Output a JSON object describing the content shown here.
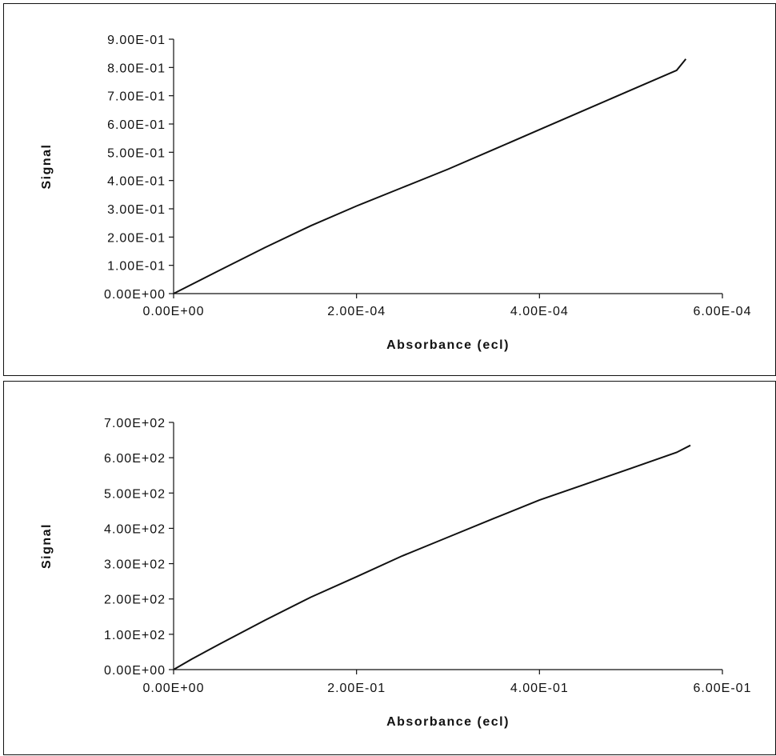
{
  "chart_data": [
    {
      "type": "line",
      "title": "",
      "xlabel": "Absorbance (ecl)",
      "ylabel": "Signal",
      "xlim": [
        0,
        0.0006
      ],
      "ylim": [
        0,
        0.9
      ],
      "x_ticks": [
        0,
        0.0002,
        0.0004,
        0.0006
      ],
      "x_tick_labels": [
        "0.00E+00",
        "2.00E-04",
        "4.00E-04",
        "6.00E-04"
      ],
      "y_ticks": [
        0,
        0.1,
        0.2,
        0.3,
        0.4,
        0.5,
        0.6,
        0.7,
        0.8,
        0.9
      ],
      "y_tick_labels": [
        "0.00E+00",
        "1.00E-01",
        "2.00E-01",
        "3.00E-01",
        "4.00E-01",
        "5.00E-01",
        "6.00E-01",
        "7.00E-01",
        "8.00E-01",
        "9.00E-01"
      ],
      "grid": false,
      "legend": "none",
      "series": [
        {
          "x": [
            0,
            5e-05,
            0.0001,
            0.00015,
            0.0002,
            0.00025,
            0.0003,
            0.00035,
            0.0004,
            0.00045,
            0.0005,
            0.00055,
            0.00056
          ],
          "values": [
            0,
            0.082,
            0.163,
            0.24,
            0.31,
            0.375,
            0.44,
            0.51,
            0.58,
            0.65,
            0.72,
            0.79,
            0.83
          ]
        }
      ]
    },
    {
      "type": "line",
      "title": "",
      "xlabel": "Absorbance (ecl)",
      "ylabel": "Signal",
      "xlim": [
        0,
        0.6
      ],
      "ylim": [
        0,
        700
      ],
      "x_ticks": [
        0,
        0.2,
        0.4,
        0.6
      ],
      "x_tick_labels": [
        "0.00E+00",
        "2.00E-01",
        "4.00E-01",
        "6.00E-01"
      ],
      "y_ticks": [
        0,
        100,
        200,
        300,
        400,
        500,
        600,
        700
      ],
      "y_tick_labels": [
        "0.00E+00",
        "1.00E+02",
        "2.00E+02",
        "3.00E+02",
        "4.00E+02",
        "5.00E+02",
        "6.00E+02",
        "7.00E+02"
      ],
      "grid": false,
      "legend": "none",
      "series": [
        {
          "x": [
            0,
            0.02,
            0.05,
            0.1,
            0.15,
            0.2,
            0.25,
            0.3,
            0.35,
            0.4,
            0.45,
            0.5,
            0.55,
            0.565
          ],
          "values": [
            0,
            30,
            72,
            140,
            205,
            263,
            322,
            375,
            428,
            480,
            525,
            570,
            615,
            635
          ]
        }
      ]
    }
  ]
}
